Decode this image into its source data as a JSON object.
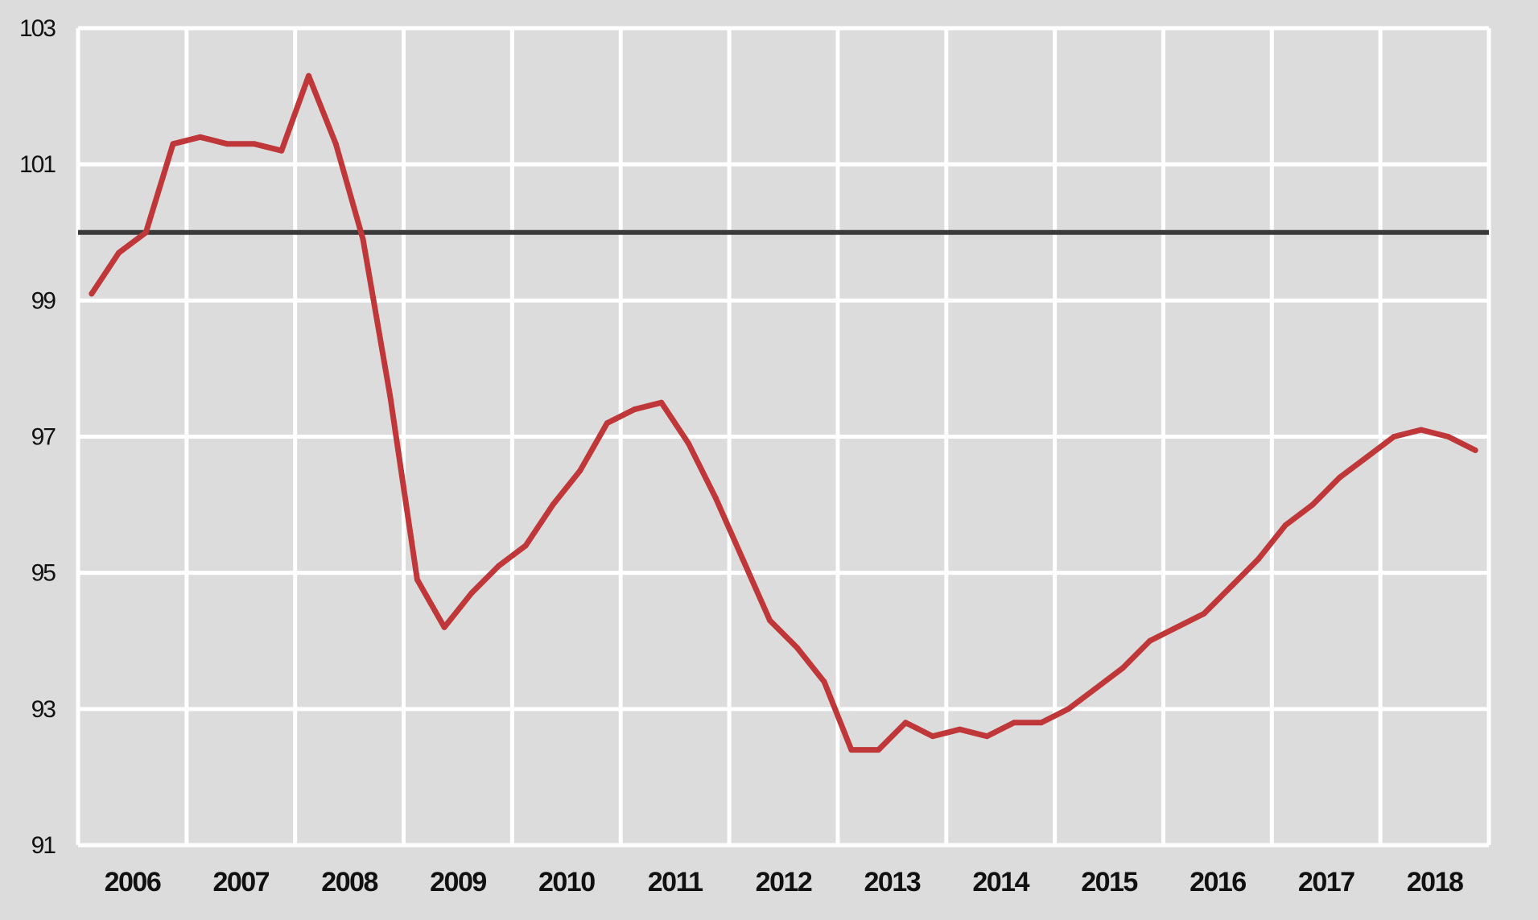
{
  "chart_data": {
    "type": "line",
    "title": "",
    "xlabel": "",
    "ylabel": "",
    "ylim": [
      91,
      103
    ],
    "xlim": [
      2006.0,
      2019.0
    ],
    "yticks": [
      91,
      93,
      95,
      97,
      99,
      101,
      103
    ],
    "xtick_labels": [
      "2006",
      "2007",
      "2008",
      "2009",
      "2010",
      "2011",
      "2012",
      "2013",
      "2014",
      "2015",
      "2016",
      "2017",
      "2018"
    ],
    "grid": true,
    "legend": "none",
    "reference_line": {
      "y": 100,
      "color": "#3a3a3a"
    },
    "series": [
      {
        "color": "#c0373a",
        "x": [
          2006.125,
          2006.375,
          2006.625,
          2006.875,
          2007.125,
          2007.375,
          2007.625,
          2007.875,
          2008.125,
          2008.375,
          2008.625,
          2008.875,
          2009.125,
          2009.375,
          2009.625,
          2009.875,
          2010.125,
          2010.375,
          2010.625,
          2010.875,
          2011.125,
          2011.375,
          2011.625,
          2011.875,
          2012.125,
          2012.375,
          2012.625,
          2012.875,
          2013.125,
          2013.375,
          2013.625,
          2013.875,
          2014.125,
          2014.375,
          2014.625,
          2014.875,
          2015.125,
          2015.375,
          2015.625,
          2015.875,
          2016.125,
          2016.375,
          2016.625,
          2016.875,
          2017.125,
          2017.375,
          2017.625,
          2017.875,
          2018.125,
          2018.375,
          2018.625,
          2018.875
        ],
        "values": [
          99.1,
          99.7,
          100.0,
          101.3,
          101.4,
          101.3,
          101.3,
          101.2,
          102.3,
          101.3,
          99.9,
          97.6,
          94.9,
          94.2,
          94.7,
          95.1,
          95.4,
          96.0,
          96.5,
          97.2,
          97.4,
          97.5,
          96.9,
          96.1,
          95.2,
          94.3,
          93.9,
          93.4,
          92.4,
          92.4,
          92.8,
          92.6,
          92.7,
          92.6,
          92.8,
          92.8,
          93.0,
          93.3,
          93.6,
          94.0,
          94.2,
          94.4,
          94.8,
          95.2,
          95.7,
          96.0,
          96.4,
          96.7,
          97.0,
          97.1,
          97.0,
          96.8
        ]
      }
    ]
  }
}
